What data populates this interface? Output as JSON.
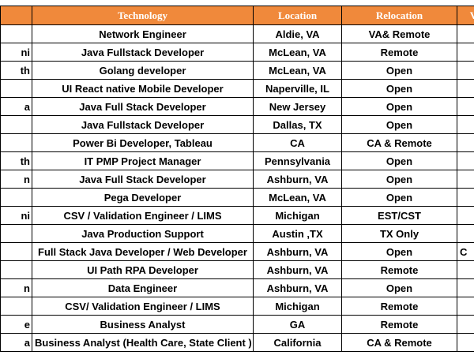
{
  "table": {
    "headers": [
      "Technology",
      "Location",
      "Relocation",
      "V"
    ],
    "rows": [
      {
        "technology": "Network Engineer",
        "location": "Aldie, VA",
        "relocation": "VA& Remote"
      },
      {
        "name": "ni",
        "technology": "Java Fullstack  Developer",
        "location": "McLean, VA",
        "relocation": "Remote"
      },
      {
        "name": "th",
        "technology": "Golang developer",
        "location": "McLean, VA",
        "relocation": "Open"
      },
      {
        "technology": "UI React native Mobile Developer",
        "location": "Naperville, IL",
        "relocation": "Open"
      },
      {
        "name": "a",
        "technology": "Java Full Stack Developer",
        "location": "New Jersey",
        "relocation": "Open"
      },
      {
        "technology": "Java Fullstack Developer",
        "location": "Dallas, TX",
        "relocation": "Open"
      },
      {
        "technology": "Power Bi Developer, Tableau",
        "location": "CA",
        "relocation": "CA & Remote"
      },
      {
        "name": "th",
        "technology": "IT PMP Project Manager",
        "location": "Pennsylvania",
        "relocation": "Open"
      },
      {
        "name": "n",
        "technology": "Java Full Stack Developer",
        "location": "Ashburn, VA",
        "relocation": "Open"
      },
      {
        "technology": "Pega Developer",
        "location": "McLean, VA",
        "relocation": "Open"
      },
      {
        "name": "ni",
        "technology": "CSV  / Validation Engineer / LIMS",
        "location": "Michigan",
        "relocation": "EST/CST"
      },
      {
        "technology": "Java Production Support",
        "location": "Austin ,TX",
        "relocation": "TX Only"
      },
      {
        "technology": "Full Stack Java Developer / Web Developer",
        "location": "Ashburn, VA",
        "relocation": "Open",
        "extra": "C"
      },
      {
        "technology": "UI Path RPA Developer",
        "location": "Ashburn, VA",
        "relocation": "Remote"
      },
      {
        "name": "n",
        "technology": "Data Engineer",
        "location": "Ashburn, VA",
        "relocation": "Open"
      },
      {
        "technology": "CSV/ Validation  Engineer / LIMS",
        "location": "Michigan",
        "relocation": "Remote"
      },
      {
        "name": "e",
        "technology": "Business Analyst",
        "location": "GA",
        "relocation": "Remote"
      },
      {
        "name": "a",
        "technology": "Business Analyst (Health Care, State Client )",
        "location": "California",
        "relocation": "CA & Remote"
      }
    ]
  }
}
